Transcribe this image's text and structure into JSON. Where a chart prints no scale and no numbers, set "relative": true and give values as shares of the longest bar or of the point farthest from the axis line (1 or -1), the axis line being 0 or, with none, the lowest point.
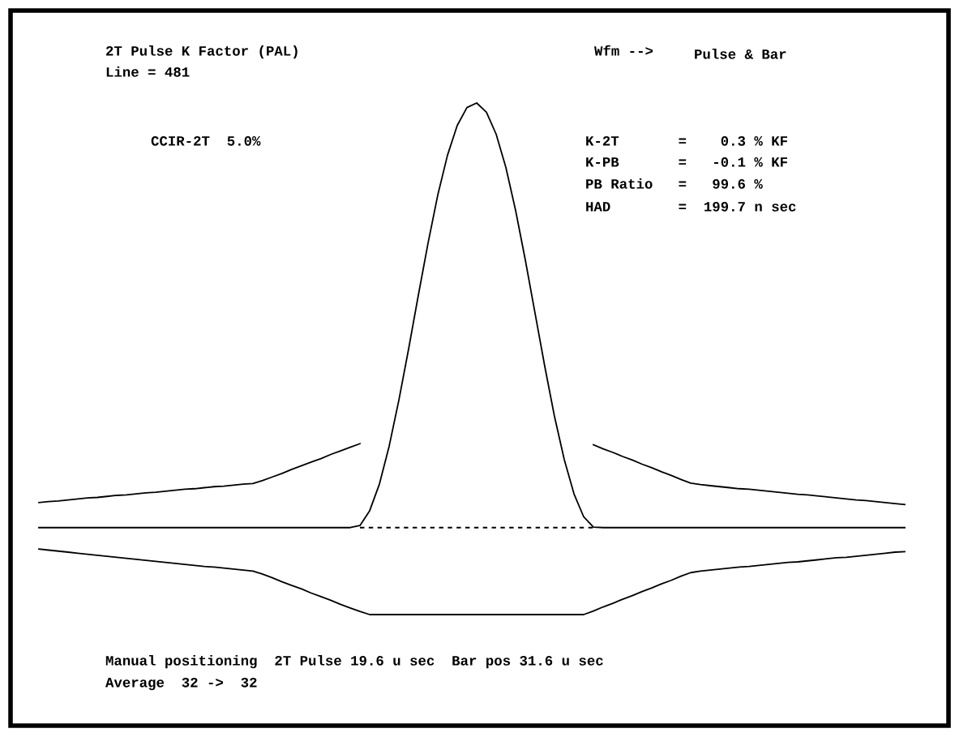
{
  "chart_data": {
    "type": "line",
    "relative": true,
    "title": "2T Pulse K Factor (PAL)",
    "subtitle": "Line = 481",
    "categories": [
      null,
      null,
      null,
      null,
      null,
      null,
      null,
      null,
      null,
      null,
      null,
      null,
      null,
      null,
      null,
      null,
      null,
      null,
      null,
      null,
      null,
      null,
      null,
      null,
      null,
      null,
      null,
      null,
      null,
      null,
      null,
      null,
      null,
      null,
      null,
      null,
      null,
      null,
      null,
      null,
      null,
      null,
      null,
      null,
      null,
      null,
      null,
      null,
      null,
      null,
      null,
      null,
      null,
      null,
      null,
      null,
      null,
      null,
      null,
      null,
      null,
      null,
      null,
      null,
      null,
      null,
      null,
      null,
      null,
      null,
      null,
      null,
      null,
      null,
      null,
      null,
      null,
      null,
      null,
      null,
      null,
      null,
      null,
      null,
      null,
      null,
      null,
      null,
      null,
      null
    ],
    "series": [
      {
        "color": "#000000",
        "line_style": "solid",
        "values": [
          0.219,
          0.221,
          0.222,
          0.224,
          0.226,
          0.228,
          0.229,
          0.231,
          0.233,
          0.234,
          0.236,
          0.238,
          0.239,
          0.241,
          0.243,
          0.245,
          0.246,
          0.248,
          0.25,
          0.251,
          0.253,
          0.255,
          0.256,
          0.262,
          0.269,
          0.276,
          0.284,
          0.291,
          0.298,
          0.305,
          0.313,
          0.32,
          0.327,
          0.334,
          null,
          null,
          null,
          null,
          null,
          null,
          null,
          null,
          null,
          null,
          null,
          null,
          null,
          null,
          null,
          null,
          null,
          null,
          null,
          null,
          null,
          null,
          null,
          0.332,
          0.324,
          0.317,
          0.309,
          0.302,
          0.294,
          0.287,
          0.279,
          0.272,
          0.264,
          0.257,
          0.254,
          0.252,
          0.25,
          0.248,
          0.246,
          0.245,
          0.243,
          0.241,
          0.239,
          0.237,
          0.235,
          0.234,
          0.232,
          0.23,
          0.228,
          0.226,
          0.224,
          0.223,
          0.221,
          0.219,
          0.217,
          0.215
        ]
      },
      {
        "color": "#000000",
        "line_style": "solid",
        "values": [
          0.17,
          0.17,
          0.17,
          0.17,
          0.17,
          0.17,
          0.17,
          0.17,
          0.17,
          0.17,
          0.17,
          0.17,
          0.17,
          0.17,
          0.17,
          0.17,
          0.17,
          0.17,
          0.17,
          0.17,
          0.17,
          0.17,
          0.17,
          0.17,
          0.17,
          0.17,
          0.17,
          0.17,
          0.17,
          0.17,
          0.17,
          0.17,
          0.17,
          0.174,
          0.203,
          0.255,
          0.329,
          0.419,
          0.519,
          0.624,
          0.726,
          0.82,
          0.898,
          0.956,
          0.991,
          1.0,
          0.982,
          0.939,
          0.874,
          0.79,
          0.693,
          0.589,
          0.485,
          0.387,
          0.303,
          0.236,
          0.191,
          0.171,
          0.17,
          0.17,
          0.17,
          0.17,
          0.17,
          0.17,
          0.17,
          0.17,
          0.17,
          0.17,
          0.17,
          0.17,
          0.17,
          0.17,
          0.17,
          0.17,
          0.17,
          0.17,
          0.17,
          0.17,
          0.17,
          0.17,
          0.17,
          0.17,
          0.17,
          0.17,
          0.17,
          0.17,
          0.17,
          0.17,
          0.17,
          0.17
        ]
      },
      {
        "color": "#000000",
        "line_style": "dashed",
        "values": [
          null,
          null,
          null,
          null,
          null,
          null,
          null,
          null,
          null,
          null,
          null,
          null,
          null,
          null,
          null,
          null,
          null,
          null,
          null,
          null,
          null,
          null,
          null,
          null,
          null,
          null,
          null,
          null,
          null,
          null,
          null,
          null,
          null,
          0.17,
          0.17,
          0.17,
          0.17,
          0.17,
          0.17,
          0.17,
          0.17,
          0.17,
          0.17,
          0.17,
          0.17,
          0.17,
          0.17,
          0.17,
          0.17,
          0.17,
          0.17,
          0.17,
          0.17,
          0.17,
          0.17,
          0.17,
          0.17,
          0.17,
          null,
          null,
          null,
          null,
          null,
          null,
          null,
          null,
          null,
          null,
          null,
          null,
          null,
          null,
          null,
          null,
          null,
          null,
          null,
          null,
          null,
          null,
          null,
          null,
          null,
          null,
          null,
          null,
          null,
          null,
          null,
          null
        ]
      },
      {
        "color": "#000000",
        "line_style": "solid",
        "values": [
          0.128,
          0.126,
          0.124,
          0.122,
          0.12,
          0.118,
          0.116,
          0.114,
          0.112,
          0.11,
          0.108,
          0.106,
          0.104,
          0.102,
          0.1,
          0.098,
          0.096,
          0.094,
          0.093,
          0.091,
          0.089,
          0.087,
          0.085,
          0.079,
          0.072,
          0.064,
          0.057,
          0.05,
          0.042,
          0.035,
          0.028,
          0.02,
          0.013,
          0.006,
          0,
          0,
          0,
          0,
          0,
          0,
          0,
          0,
          0,
          0,
          0,
          0,
          0,
          0,
          0,
          0,
          0,
          0,
          0,
          0,
          0,
          0,
          0,
          0.007,
          0.015,
          0.022,
          0.03,
          0.037,
          0.045,
          0.052,
          0.06,
          0.067,
          0.075,
          0.082,
          0.085,
          0.087,
          0.089,
          0.091,
          0.093,
          0.094,
          0.096,
          0.098,
          0.1,
          0.102,
          0.103,
          0.105,
          0.107,
          0.109,
          0.111,
          0.112,
          0.114,
          0.116,
          0.118,
          0.12,
          0.122,
          0.123
        ]
      }
    ],
    "annotations": [
      "Wfm -->",
      "Pulse & Bar",
      "CCIR-2T  5.0%",
      "K-2T       =    0.3 % KF",
      "K-PB       =   -0.1 % KF",
      "PB Ratio   =   99.6 %",
      "HAD        =  199.7 n sec",
      "Manual positioning  2T Pulse 19.6 u sec  Bar pos 31.6 u sec",
      "Average  32 ->  32"
    ],
    "legend": false
  }
}
